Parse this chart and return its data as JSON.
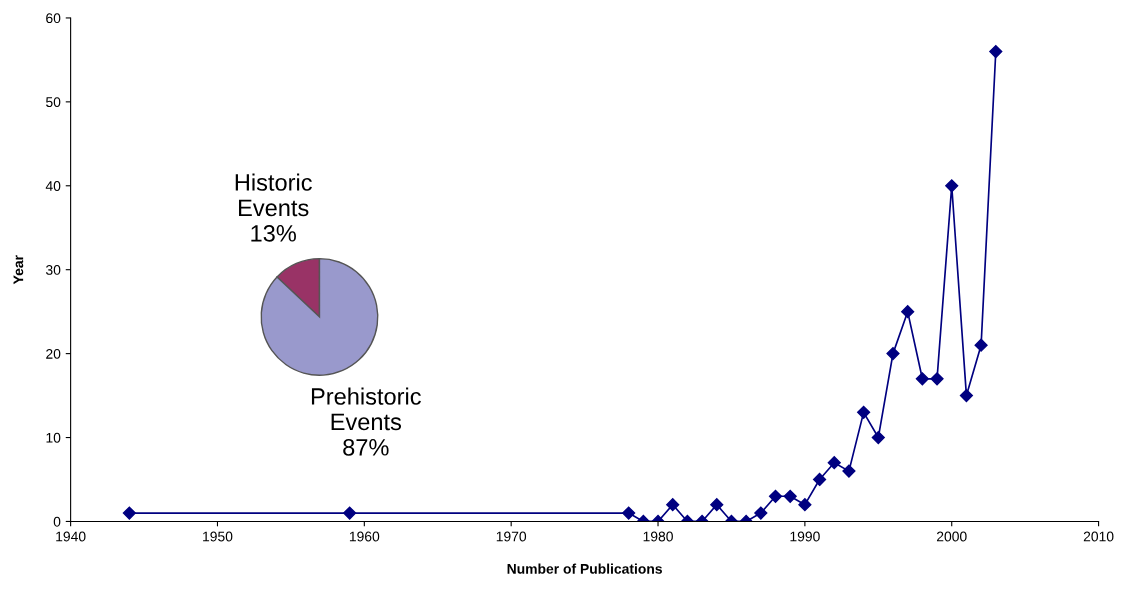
{
  "chart_data": [
    {
      "type": "line",
      "xlabel": "Number of Publications",
      "ylabel": "Year",
      "x": [
        1944,
        1959,
        1978,
        1979,
        1980,
        1981,
        1982,
        1983,
        1984,
        1985,
        1986,
        1987,
        1988,
        1989,
        1990,
        1991,
        1992,
        1993,
        1994,
        1995,
        1996,
        1997,
        1998,
        1999,
        2000,
        2001,
        2002,
        2003
      ],
      "series": [
        {
          "color": "#000080",
          "values": [
            1,
            1,
            1,
            0,
            0,
            2,
            0,
            0,
            2,
            0,
            0,
            1,
            3,
            3,
            2,
            5,
            7,
            6,
            13,
            10,
            20,
            25,
            17,
            17,
            40,
            15,
            21,
            56
          ]
        }
      ],
      "xlim": [
        1940,
        2010
      ],
      "xticks": [
        1940,
        1950,
        1960,
        1970,
        1980,
        1990,
        2000,
        2010
      ],
      "ylim": [
        0,
        60
      ],
      "yticks": [
        0,
        10,
        20,
        30,
        40,
        50,
        60
      ],
      "grid": false,
      "legend": false,
      "marker": "diamond",
      "line_style": "solid"
    },
    {
      "type": "pie",
      "categories": [
        "Historic\nEvents",
        "Prehistoric\nEvents"
      ],
      "values": [
        13,
        87
      ],
      "colors": [
        "#993366",
        "#9999cc"
      ],
      "value_labels": [
        "13%",
        "87%"
      ]
    }
  ]
}
